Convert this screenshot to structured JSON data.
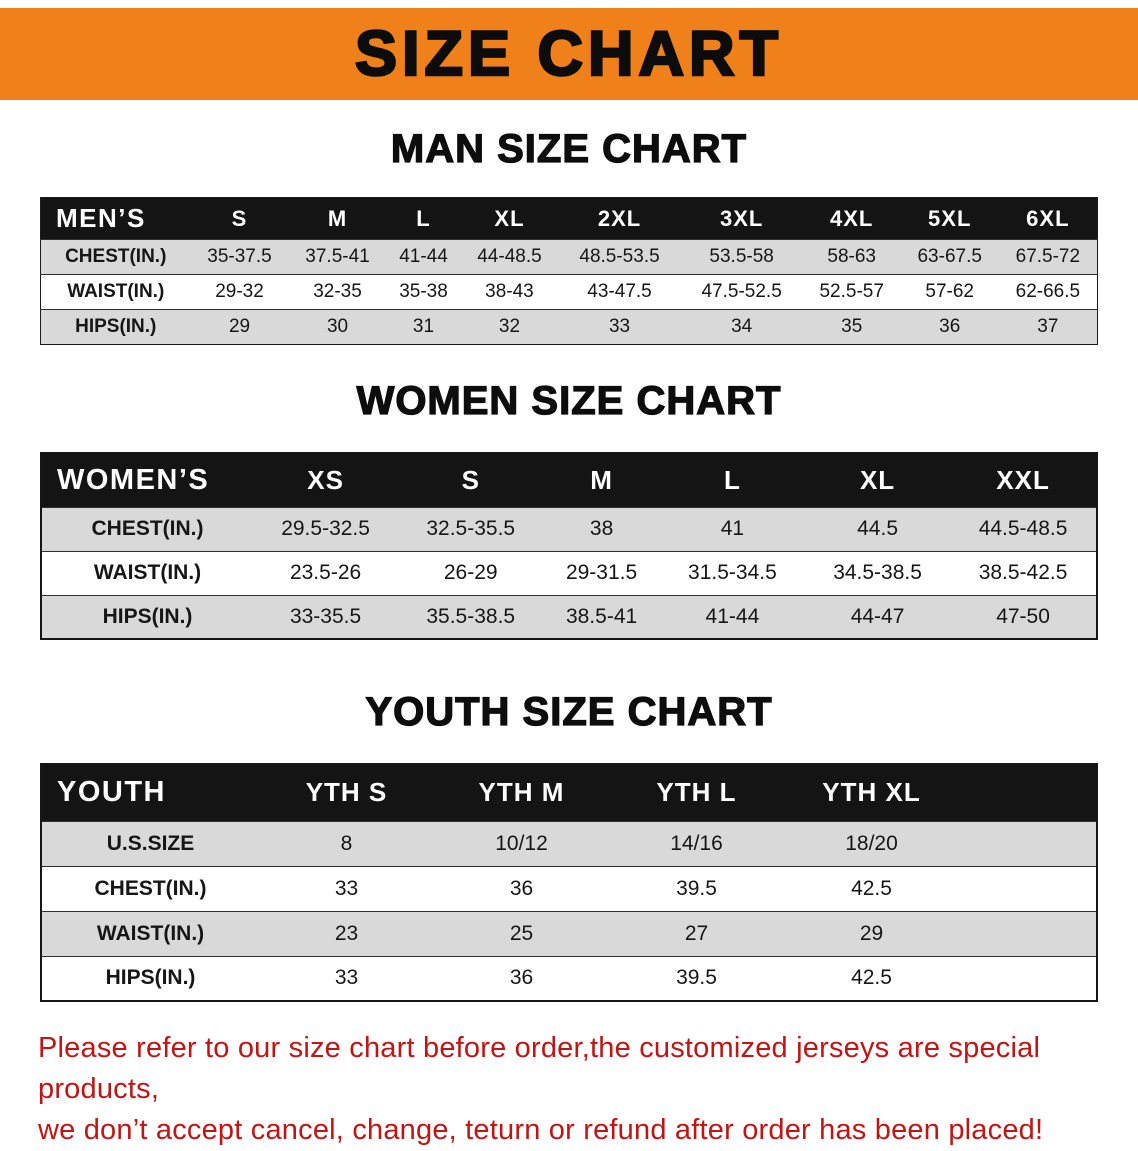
{
  "banner": {
    "title": "SIZE CHART"
  },
  "colors": {
    "banner_orange": "#F08019",
    "header_black": "#141414",
    "row_gray": "#D9D9D9",
    "disclaimer_red": "#C31414"
  },
  "sections": [
    {
      "heading": "MAN SIZE CHART",
      "table": {
        "header": [
          "MEN’S",
          "S",
          "M",
          "L",
          "XL",
          "2XL",
          "3XL",
          "4XL",
          "5XL",
          "6XL"
        ],
        "rows": [
          [
            "CHEST(IN.)",
            "35-37.5",
            "37.5-41",
            "41-44",
            "44-48.5",
            "48.5-53.5",
            "53.5-58",
            "58-63",
            "63-67.5",
            "67.5-72"
          ],
          [
            "WAIST(IN.)",
            "29-32",
            "32-35",
            "35-38",
            "38-43",
            "43-47.5",
            "47.5-52.5",
            "52.5-57",
            "57-62",
            "62-66.5"
          ],
          [
            "HIPS(IN.)",
            "29",
            "30",
            "31",
            "32",
            "33",
            "34",
            "35",
            "36",
            "37"
          ]
        ]
      }
    },
    {
      "heading": "WOMEN SIZE CHART",
      "table": {
        "header": [
          "WOMEN’S",
          "XS",
          "S",
          "M",
          "L",
          "XL",
          "XXL"
        ],
        "rows": [
          [
            "CHEST(IN.)",
            "29.5-32.5",
            "32.5-35.5",
            "38",
            "41",
            "44.5",
            "44.5-48.5"
          ],
          [
            "WAIST(IN.)",
            "23.5-26",
            "26-29",
            "29-31.5",
            "31.5-34.5",
            "34.5-38.5",
            "38.5-42.5"
          ],
          [
            "HIPS(IN.)",
            "33-35.5",
            "35.5-38.5",
            "38.5-41",
            "41-44",
            "44-47",
            "47-50"
          ]
        ]
      }
    },
    {
      "heading": "YOUTH SIZE CHART",
      "table": {
        "header": [
          "YOUTH",
          "YTH S",
          "YTH M",
          "YTH L",
          "YTH XL"
        ],
        "rows": [
          [
            "U.S.SIZE",
            "8",
            "10/12",
            "14/16",
            "18/20"
          ],
          [
            "CHEST(IN.)",
            "33",
            "36",
            "39.5",
            "42.5"
          ],
          [
            "WAIST(IN.)",
            "23",
            "25",
            "27",
            "29"
          ],
          [
            "HIPS(IN.)",
            "33",
            "36",
            "39.5",
            "42.5"
          ]
        ]
      }
    }
  ],
  "disclaimer": {
    "line1": "Please refer to our size chart before order,the customized jerseys are special products,",
    "line2": "we don’t accept cancel, change, teturn or refund after order has been placed!"
  }
}
